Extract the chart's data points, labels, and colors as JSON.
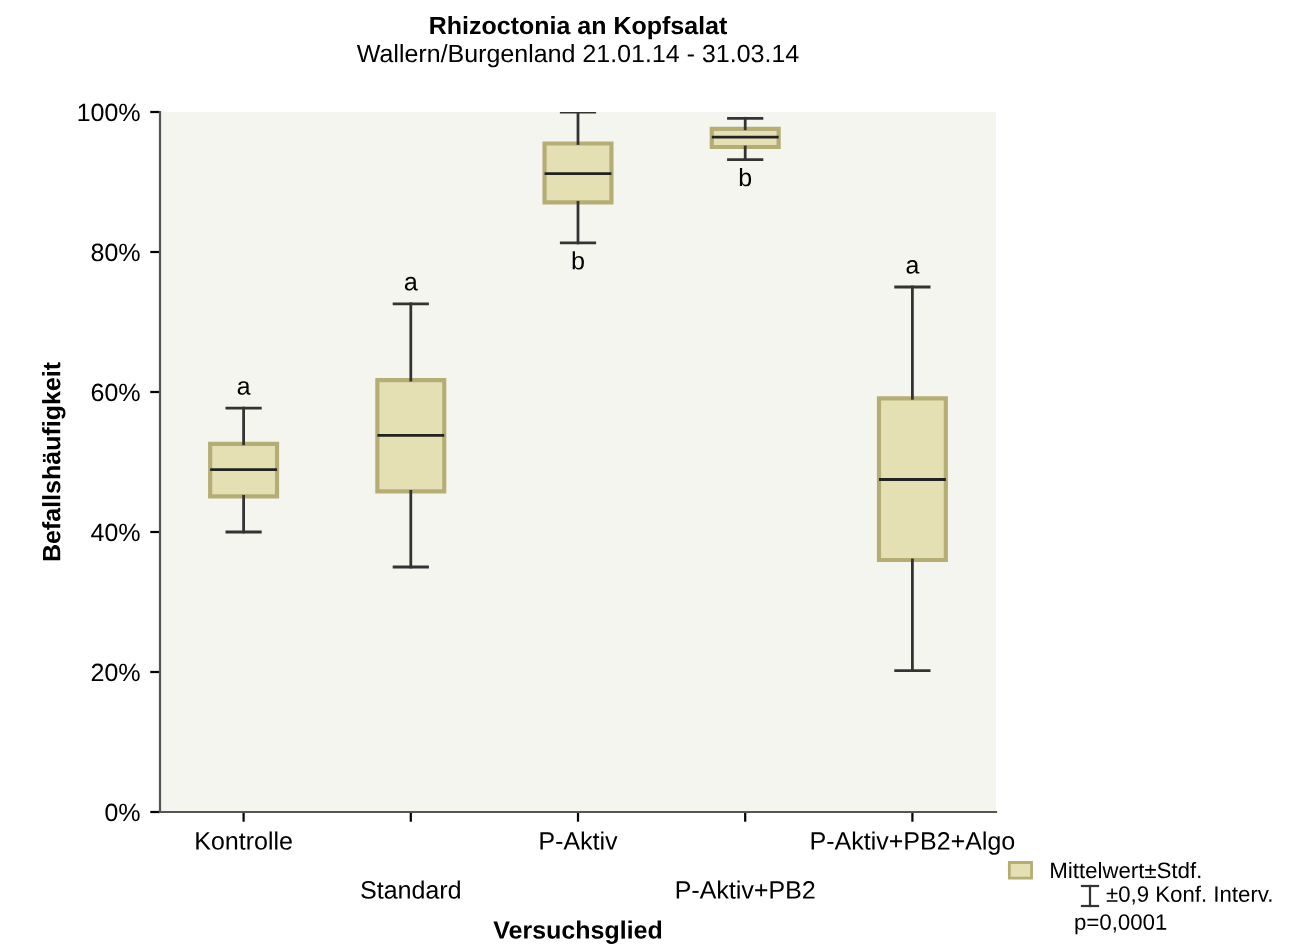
{
  "chart_data": {
    "type": "box",
    "title": "Rhizoctonia an Kopfsalat",
    "subtitle": "Wallern/Burgenland 21.01.14 - 31.03.14",
    "xlabel": "Versuchsglied",
    "ylabel": "Befallshäufigkeit",
    "categories": [
      "Kontrolle",
      "Standard",
      "P-Aktiv",
      "P-Aktiv+PB2",
      "P-Aktiv+PB2+Algo"
    ],
    "series": [
      {
        "name": "Mittelwert±Stdf.",
        "color": "#e4e0b4",
        "boxes": [
          {
            "low": 40.0,
            "q1": 45.1,
            "median": 48.9,
            "q3": 52.6,
            "high": 57.7
          },
          {
            "low": 35.0,
            "q1": 45.8,
            "median": 53.8,
            "q3": 61.7,
            "high": 72.6
          },
          {
            "low": 81.3,
            "q1": 87.1,
            "median": 91.2,
            "q3": 95.5,
            "high": 100
          },
          {
            "low": 93.2,
            "q1": 95.0,
            "median": 96.4,
            "q3": 97.6,
            "high": 99.1
          },
          {
            "low": 20.2,
            "q1": 36.0,
            "median": 47.5,
            "q3": 59.1,
            "high": 75.0
          }
        ]
      }
    ],
    "ylim": [
      0,
      100
    ],
    "yticks": [
      {
        "value": 0,
        "label": "0%"
      },
      {
        "value": 20,
        "label": "20%"
      },
      {
        "value": 40,
        "label": "40%"
      },
      {
        "value": 60,
        "label": "60%"
      },
      {
        "value": 80,
        "label": "80%"
      },
      {
        "value": 100,
        "label": "100%"
      }
    ],
    "grid": false,
    "legend": "bottom right",
    "annotations": [
      {
        "text": "a",
        "x": "Kontrolle",
        "y": 57.7
      },
      {
        "text": "a",
        "x": "Standard",
        "y": 72.6
      },
      {
        "text": "b",
        "x": "P-Aktiv",
        "y": 81.3
      },
      {
        "text": "b",
        "x": "P-Aktiv+PB2",
        "y": 93.2
      },
      {
        "text": "a",
        "x": "P-Aktiv+PB2+Algo",
        "y": 75.0
      },
      "±0,9 Konf. Interv.",
      "p=0,0001"
    ]
  }
}
